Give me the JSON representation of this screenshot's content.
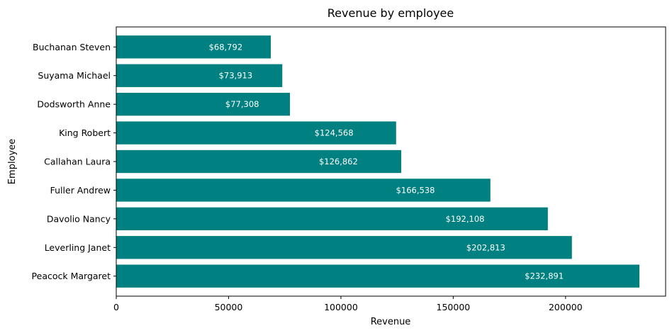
{
  "chart_data": {
    "type": "bar",
    "orientation": "horizontal",
    "title": "Revenue by employee",
    "xlabel": "Revenue",
    "ylabel": "Employee",
    "categories": [
      "Peacock Margaret",
      "Leverling Janet",
      "Davolio Nancy",
      "Fuller Andrew",
      "Callahan Laura",
      "King Robert",
      "Dodsworth Anne",
      "Suyama Michael",
      "Buchanan Steven"
    ],
    "values": [
      232891,
      202813,
      192108,
      166538,
      126862,
      124568,
      77308,
      73913,
      68792
    ],
    "data_labels": [
      "$232,891",
      "$202,813",
      "$192,108",
      "$166,538",
      "$126,862",
      "$124,568",
      "$77,308",
      "$73,913",
      "$68,792"
    ],
    "xticks": [
      0,
      50000,
      100000,
      150000,
      200000
    ],
    "xlim": [
      0,
      244535
    ],
    "bar_color": "#008080",
    "grid": false
  }
}
